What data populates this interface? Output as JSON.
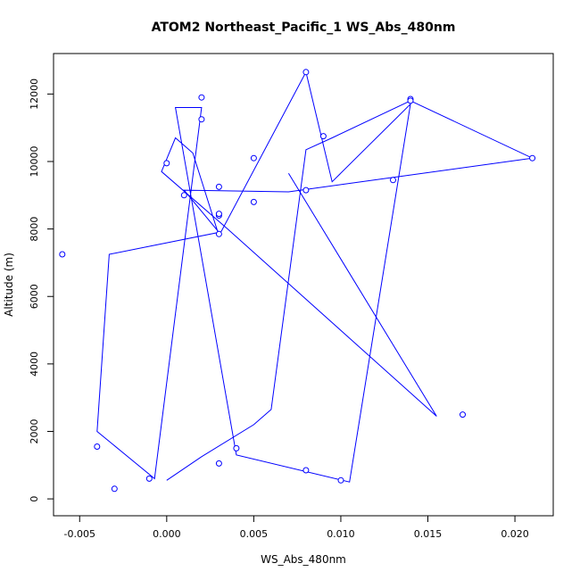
{
  "chart_data": {
    "type": "line",
    "title": "ATOM2 Northeast_Pacific_1 WS_Abs_480nm",
    "xlabel": "WS_Abs_480nm",
    "ylabel": "Altitude (m)",
    "xlim": [
      -0.0065,
      0.0222
    ],
    "ylim": [
      -500,
      13200
    ],
    "xticks": [
      -0.005,
      0.0,
      0.005,
      0.01,
      0.015,
      0.02
    ],
    "xtick_labels": [
      "-0.005",
      "0.000",
      "0.005",
      "0.010",
      "0.015",
      "0.020"
    ],
    "yticks": [
      0,
      2000,
      4000,
      6000,
      8000,
      10000,
      12000
    ],
    "ytick_labels": [
      "0",
      "2000",
      "4000",
      "6000",
      "8000",
      "10000",
      "12000"
    ],
    "grid": false,
    "legend": "none",
    "series_color": "#0000ff",
    "series": [
      {
        "x": [
          0.0,
          0.002,
          0.005,
          0.006,
          0.008,
          0.0095,
          0.014,
          0.021,
          0.007,
          0.001,
          0.003,
          -0.0033,
          -0.004,
          -0.0007,
          0.002,
          0.0005,
          0.004,
          0.0105,
          0.014,
          0.0095,
          0.008,
          0.003,
          0.0015,
          0.0005,
          -0.0003,
          0.0035,
          0.0155,
          0.007
        ],
        "y": [
          550,
          1250,
          2200,
          2650,
          10350,
          10700,
          11800,
          10100,
          9100,
          9150,
          7900,
          7250,
          2000,
          600,
          11600,
          11600,
          1300,
          500,
          11700,
          9400,
          12650,
          7800,
          10250,
          10700,
          9700,
          8000,
          2450,
          9650
        ],
        "points": [
          {
            "x": 0.0,
            "y": 9950
          },
          {
            "x": 0.003,
            "y": 8400
          },
          {
            "x": 0.003,
            "y": 7850
          },
          {
            "x": -0.006,
            "y": 7250
          },
          {
            "x": -0.004,
            "y": 1550
          },
          {
            "x": 0.004,
            "y": 1500
          },
          {
            "x": 0.003,
            "y": 1050
          },
          {
            "x": 0.017,
            "y": 2500
          },
          {
            "x": 0.008,
            "y": 9150
          },
          {
            "x": 0.003,
            "y": 9250
          },
          {
            "x": 0.021,
            "y": 10100
          },
          {
            "x": 0.008,
            "y": 12650
          },
          {
            "x": 0.013,
            "y": 9450
          },
          {
            "x": 0.014,
            "y": 11850
          },
          {
            "x": 0.01,
            "y": 550
          },
          {
            "x": 0.014,
            "y": 11800
          },
          {
            "x": 0.008,
            "y": 850
          },
          {
            "x": 0.002,
            "y": 11900
          },
          {
            "x": 0.002,
            "y": 11250
          },
          {
            "x": -0.001,
            "y": 600
          },
          {
            "x": 0.009,
            "y": 10750
          },
          {
            "x": 0.005,
            "y": 10100
          },
          {
            "x": 0.005,
            "y": 8800
          },
          {
            "x": -0.003,
            "y": 300
          },
          {
            "x": 0.001,
            "y": 9000
          },
          {
            "x": 0.003,
            "y": 8450
          }
        ]
      }
    ]
  }
}
